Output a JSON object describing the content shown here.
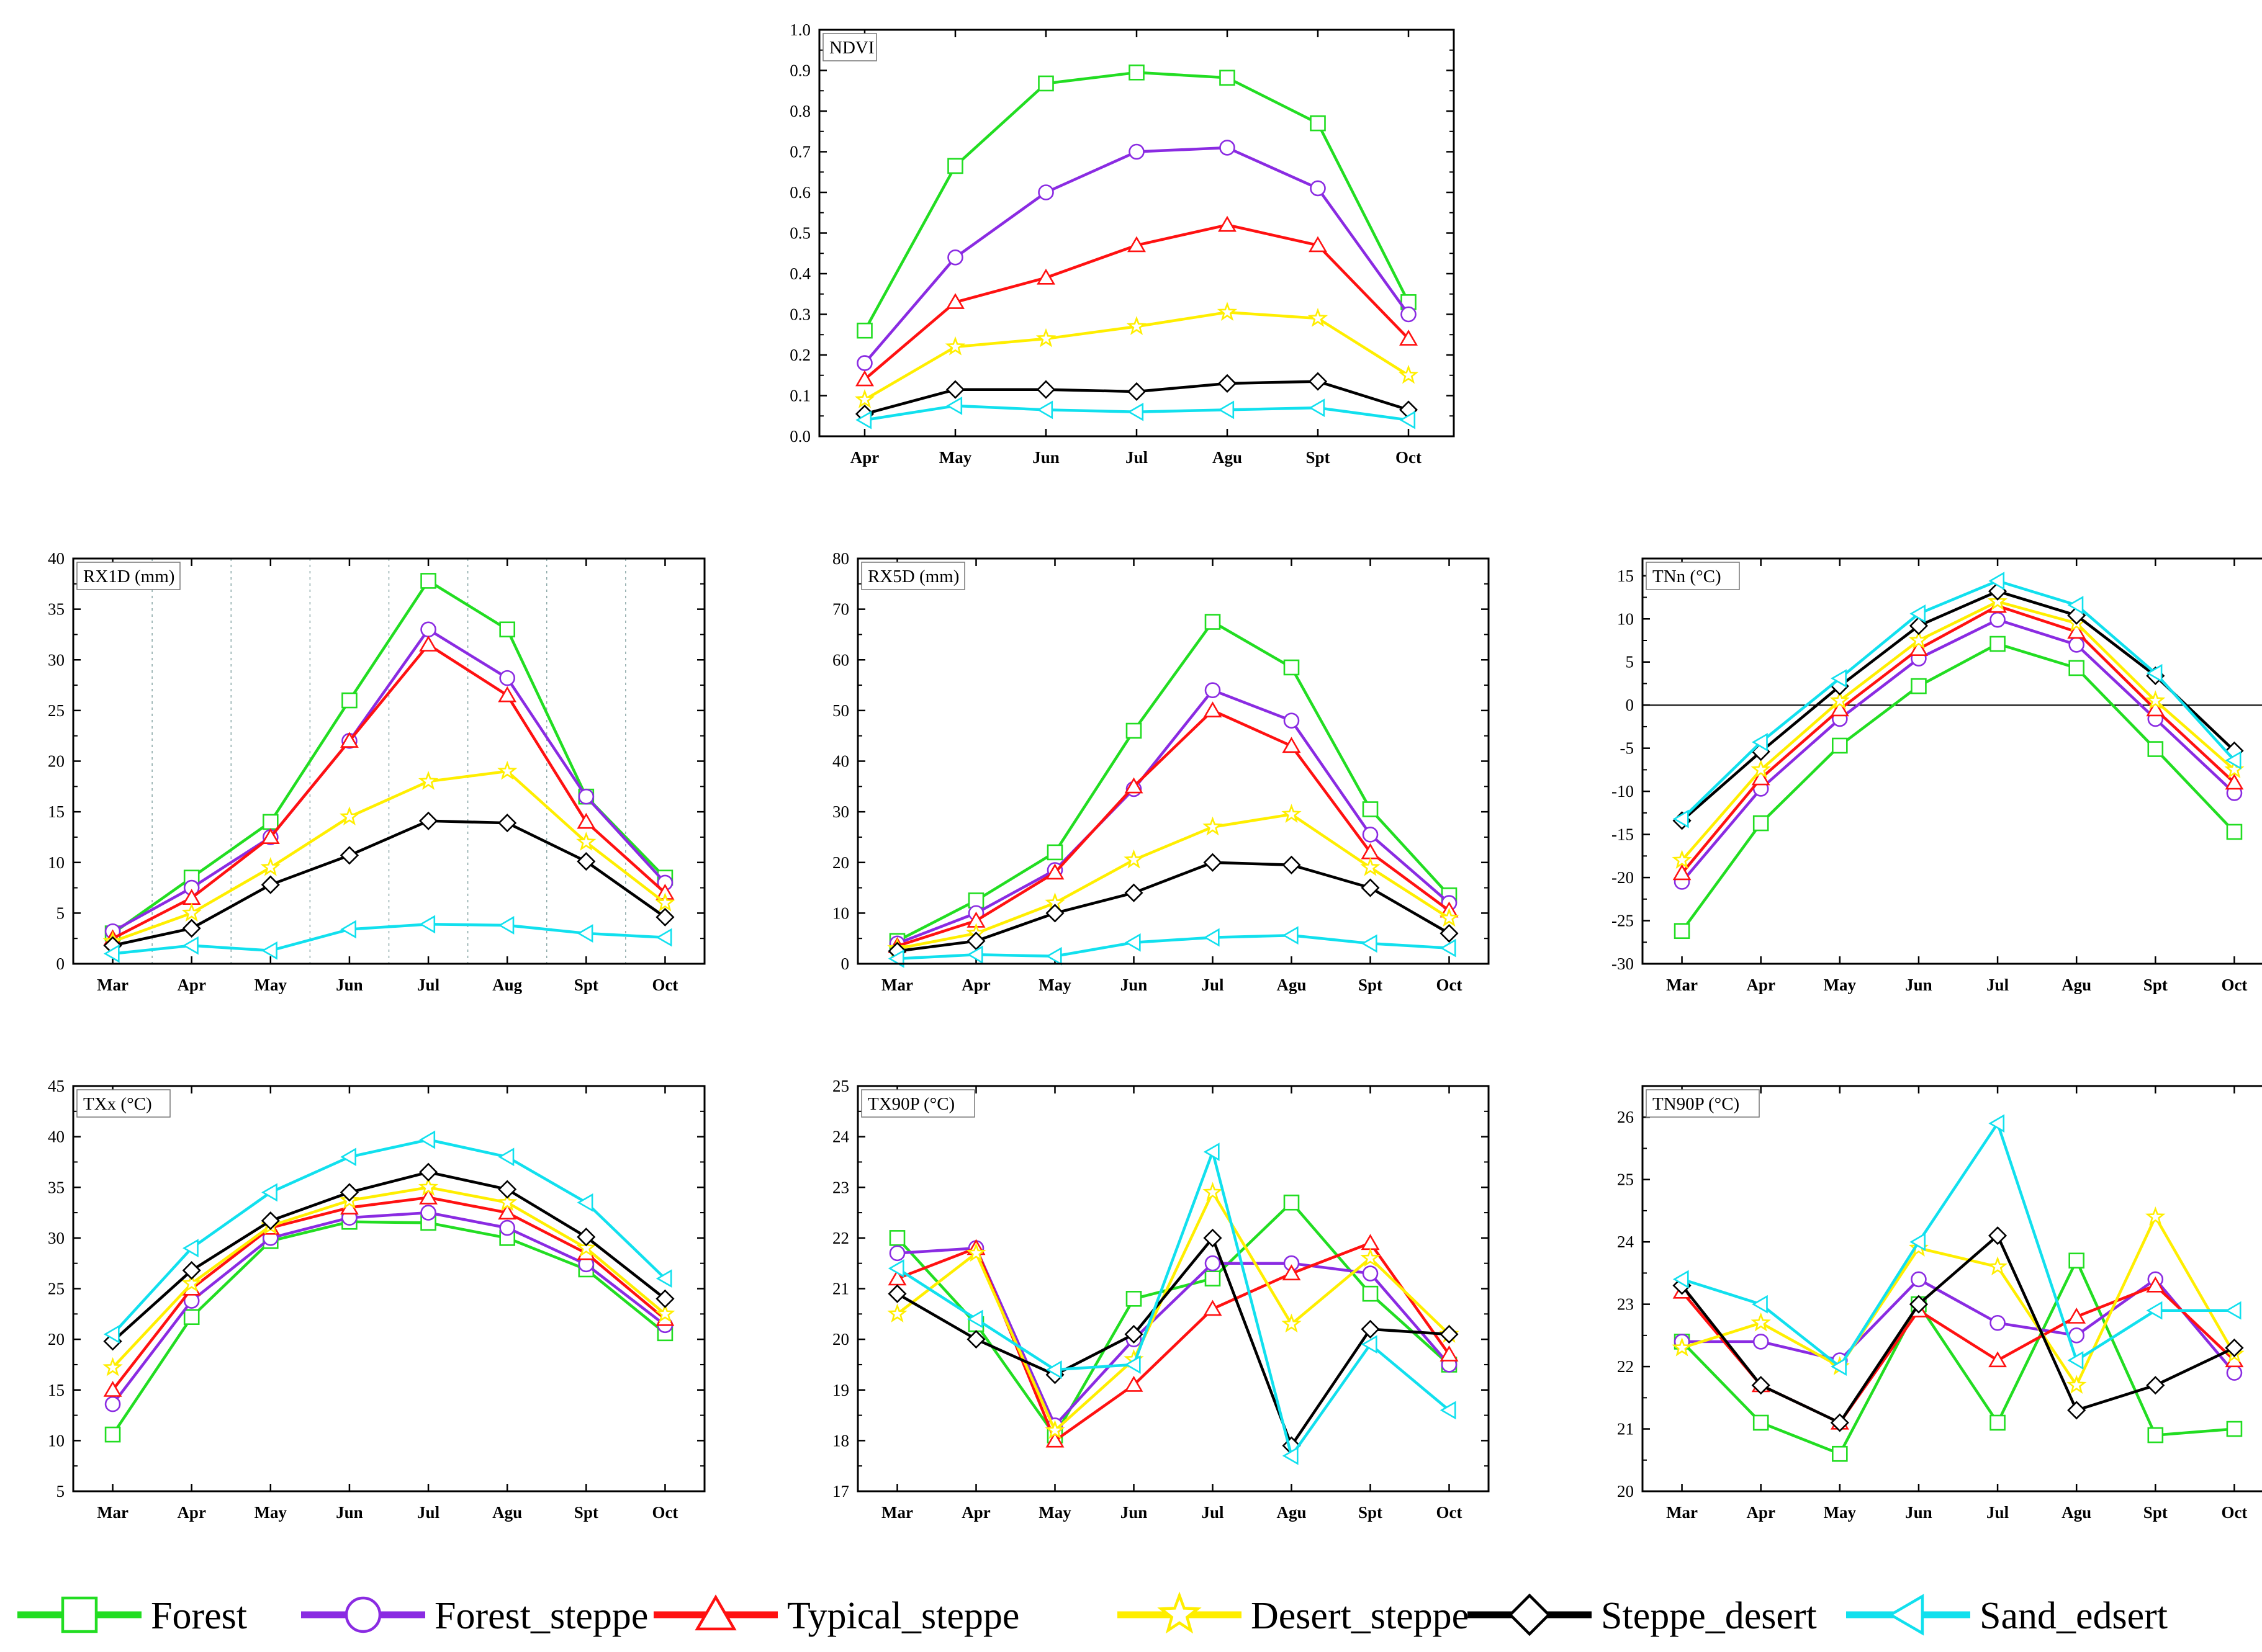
{
  "colors": {
    "Forest": "#22dd22",
    "Forest_steppe": "#8a2be2",
    "Typical_steppe": "#ff1111",
    "Desert_steppe": "#ffee00",
    "Steppe_desert": "#000000",
    "Sand_edsert": "#11e0ee"
  },
  "legend": {
    "placement": "bottom",
    "entries": [
      {
        "name": "Forest",
        "marker": "square"
      },
      {
        "name": "Forest_steppe",
        "marker": "circle"
      },
      {
        "name": "Typical_steppe",
        "marker": "triangle-up"
      },
      {
        "name": "Desert_steppe",
        "marker": "star"
      },
      {
        "name": "Steppe_desert",
        "marker": "diamond"
      },
      {
        "name": "Sand_edsert",
        "marker": "triangle-left"
      }
    ]
  },
  "chart_data": [
    {
      "type": "line",
      "title": "NDVI",
      "categories": [
        "Apr",
        "May",
        "Jun",
        "Jul",
        "Agu",
        "Spt",
        "Oct"
      ],
      "ylim": [
        0,
        1.0
      ],
      "yticks": [
        "0.0",
        "0.1",
        "0.2",
        "0.3",
        "0.4",
        "0.5",
        "0.6",
        "0.7",
        "0.8",
        "0.9",
        "1.0"
      ],
      "grid": false,
      "series": [
        {
          "name": "Forest",
          "values": [
            0.26,
            0.665,
            0.868,
            0.895,
            0.882,
            0.77,
            0.33
          ]
        },
        {
          "name": "Forest_steppe",
          "values": [
            0.18,
            0.44,
            0.6,
            0.7,
            0.71,
            0.61,
            0.3
          ]
        },
        {
          "name": "Typical_steppe",
          "values": [
            0.14,
            0.33,
            0.39,
            0.47,
            0.52,
            0.47,
            0.24
          ]
        },
        {
          "name": "Desert_steppe",
          "values": [
            0.09,
            0.22,
            0.24,
            0.27,
            0.305,
            0.29,
            0.15
          ]
        },
        {
          "name": "Steppe_desert",
          "values": [
            0.055,
            0.115,
            0.115,
            0.11,
            0.13,
            0.135,
            0.065
          ]
        },
        {
          "name": "Sand_edsert",
          "values": [
            0.04,
            0.075,
            0.065,
            0.06,
            0.065,
            0.07,
            0.04
          ]
        }
      ]
    },
    {
      "type": "line",
      "title": "RX1D (mm)",
      "categories": [
        "Mar",
        "Apr",
        "May",
        "Jun",
        "Jul",
        "Aug",
        "Spt",
        "Oct"
      ],
      "ylim": [
        0,
        40
      ],
      "yticks": [
        "0",
        "5",
        "10",
        "15",
        "20",
        "25",
        "30",
        "35",
        "40"
      ],
      "grid": true,
      "series": [
        {
          "name": "Forest",
          "values": [
            3.0,
            8.5,
            14.0,
            26.0,
            37.8,
            33.0,
            16.5,
            8.5
          ]
        },
        {
          "name": "Forest_steppe",
          "values": [
            3.2,
            7.5,
            12.5,
            22.0,
            33.0,
            28.2,
            16.5,
            8.0
          ]
        },
        {
          "name": "Typical_steppe",
          "values": [
            2.5,
            6.5,
            12.5,
            22.0,
            31.5,
            26.5,
            14.0,
            7.0
          ]
        },
        {
          "name": "Desert_steppe",
          "values": [
            2.2,
            5.0,
            9.5,
            14.5,
            18.0,
            19.0,
            12.0,
            6.0
          ]
        },
        {
          "name": "Steppe_desert",
          "values": [
            1.8,
            3.5,
            7.8,
            10.7,
            14.1,
            13.9,
            10.1,
            4.6
          ]
        },
        {
          "name": "Sand_edsert",
          "values": [
            1.0,
            1.8,
            1.3,
            3.4,
            3.9,
            3.8,
            3.0,
            2.6
          ]
        }
      ]
    },
    {
      "type": "line",
      "title": "RX5D (mm)",
      "categories": [
        "Mar",
        "Apr",
        "May",
        "Jun",
        "Jul",
        "Agu",
        "Spt",
        "Oct"
      ],
      "ylim": [
        0,
        80
      ],
      "yticks": [
        "0",
        "10",
        "20",
        "30",
        "40",
        "50",
        "60",
        "70",
        "80"
      ],
      "grid": false,
      "series": [
        {
          "name": "Forest",
          "values": [
            4.5,
            12.5,
            22.0,
            46.0,
            67.5,
            58.5,
            30.5,
            13.5
          ]
        },
        {
          "name": "Forest_steppe",
          "values": [
            4.0,
            10.0,
            18.5,
            34.5,
            54.0,
            48.0,
            25.5,
            12.0
          ]
        },
        {
          "name": "Typical_steppe",
          "values": [
            3.5,
            8.5,
            18.0,
            35.0,
            50.0,
            43.0,
            22.0,
            10.5
          ]
        },
        {
          "name": "Desert_steppe",
          "values": [
            3.0,
            6.0,
            12.0,
            20.5,
            27.0,
            29.5,
            19.0,
            9.0
          ]
        },
        {
          "name": "Steppe_desert",
          "values": [
            2.5,
            4.5,
            10.0,
            14.0,
            20.0,
            19.5,
            15.0,
            6.0
          ]
        },
        {
          "name": "Sand_edsert",
          "values": [
            1.0,
            1.8,
            1.5,
            4.2,
            5.2,
            5.6,
            4.0,
            3.1
          ]
        }
      ]
    },
    {
      "type": "line",
      "title": "TNn (°C)",
      "categories": [
        "Mar",
        "Apr",
        "May",
        "Jun",
        "Jul",
        "Agu",
        "Spt",
        "Oct"
      ],
      "ylim": [
        -30,
        17
      ],
      "yticks": [
        "-30",
        "-25",
        "-20",
        "-15",
        "-10",
        "-5",
        "0",
        "5",
        "10",
        "15"
      ],
      "zero_line": true,
      "grid": false,
      "series": [
        {
          "name": "Forest",
          "values": [
            -26.2,
            -13.7,
            -4.7,
            2.2,
            7.1,
            4.3,
            -5.1,
            -14.7
          ]
        },
        {
          "name": "Forest_steppe",
          "values": [
            -20.5,
            -9.7,
            -1.6,
            5.4,
            9.9,
            7.0,
            -1.6,
            -10.2
          ]
        },
        {
          "name": "Typical_steppe",
          "values": [
            -19.5,
            -8.5,
            -0.5,
            6.5,
            11.5,
            8.5,
            -0.5,
            -9.0
          ]
        },
        {
          "name": "Desert_steppe",
          "values": [
            -18.0,
            -7.5,
            0.5,
            7.5,
            12.0,
            9.5,
            0.5,
            -7.5
          ]
        },
        {
          "name": "Steppe_desert",
          "values": [
            -13.4,
            -5.4,
            2.2,
            9.2,
            13.2,
            10.4,
            3.4,
            -5.3
          ]
        },
        {
          "name": "Sand_edsert",
          "values": [
            -13.2,
            -4.3,
            3.1,
            10.6,
            14.4,
            11.6,
            3.7,
            -6.4
          ]
        }
      ]
    },
    {
      "type": "line",
      "title": "TXx (°C)",
      "categories": [
        "Mar",
        "Apr",
        "May",
        "Jun",
        "Jul",
        "Agu",
        "Spt",
        "Oct"
      ],
      "ylim": [
        5,
        45
      ],
      "yticks": [
        "5",
        "10",
        "15",
        "20",
        "25",
        "30",
        "35",
        "40",
        "45"
      ],
      "grid": false,
      "series": [
        {
          "name": "Forest",
          "values": [
            10.6,
            22.2,
            29.7,
            31.6,
            31.5,
            30.0,
            26.9,
            20.6
          ]
        },
        {
          "name": "Forest_steppe",
          "values": [
            13.6,
            23.8,
            30.0,
            32.0,
            32.5,
            31.0,
            27.4,
            21.4
          ]
        },
        {
          "name": "Typical_steppe",
          "values": [
            15.0,
            25.0,
            31.0,
            33.0,
            34.0,
            32.5,
            28.5,
            22.0
          ]
        },
        {
          "name": "Desert_steppe",
          "values": [
            17.2,
            25.5,
            31.2,
            33.7,
            35.0,
            33.5,
            29.0,
            22.5
          ]
        },
        {
          "name": "Steppe_desert",
          "values": [
            19.8,
            26.8,
            31.7,
            34.5,
            36.5,
            34.8,
            30.1,
            24.0
          ]
        },
        {
          "name": "Sand_edsert",
          "values": [
            20.5,
            29.0,
            34.5,
            38.0,
            39.7,
            38.0,
            33.5,
            26.0
          ]
        }
      ]
    },
    {
      "type": "line",
      "title": "TX90P (°C)",
      "categories": [
        "Mar",
        "Apr",
        "May",
        "Jun",
        "Jul",
        "Agu",
        "Spt",
        "Oct"
      ],
      "ylim": [
        17,
        25
      ],
      "yticks": [
        "17",
        "18",
        "19",
        "20",
        "21",
        "22",
        "23",
        "24",
        "25"
      ],
      "grid": false,
      "series": [
        {
          "name": "Forest",
          "values": [
            22.0,
            20.3,
            18.1,
            20.8,
            21.2,
            22.7,
            20.9,
            19.5
          ]
        },
        {
          "name": "Forest_steppe",
          "values": [
            21.7,
            21.8,
            18.3,
            20.0,
            21.5,
            21.5,
            21.3,
            19.5
          ]
        },
        {
          "name": "Typical_steppe",
          "values": [
            21.2,
            21.8,
            18.0,
            19.1,
            20.6,
            21.3,
            21.9,
            19.7
          ]
        },
        {
          "name": "Desert_steppe",
          "values": [
            20.5,
            21.7,
            18.2,
            19.6,
            22.9,
            20.3,
            21.6,
            20.1
          ]
        },
        {
          "name": "Steppe_desert",
          "values": [
            20.9,
            20.0,
            19.3,
            20.1,
            22.0,
            17.9,
            20.2,
            20.1
          ]
        },
        {
          "name": "Sand_edsert",
          "values": [
            21.4,
            20.4,
            19.4,
            19.5,
            23.7,
            17.7,
            19.9,
            18.6
          ]
        }
      ]
    },
    {
      "type": "line",
      "title": "TN90P (°C)",
      "categories": [
        "Mar",
        "Apr",
        "May",
        "Jun",
        "Jul",
        "Agu",
        "Spt",
        "Oct"
      ],
      "ylim": [
        20,
        26.5
      ],
      "yticks": [
        "20",
        "21",
        "22",
        "23",
        "24",
        "25",
        "26"
      ],
      "grid": false,
      "series": [
        {
          "name": "Forest",
          "values": [
            22.4,
            21.1,
            20.6,
            23.0,
            21.1,
            23.7,
            20.9,
            21.0
          ]
        },
        {
          "name": "Forest_steppe",
          "values": [
            22.4,
            22.4,
            22.1,
            23.4,
            22.7,
            22.5,
            23.4,
            21.9
          ]
        },
        {
          "name": "Typical_steppe",
          "values": [
            23.2,
            21.7,
            21.1,
            22.9,
            22.1,
            22.8,
            23.3,
            22.1
          ]
        },
        {
          "name": "Desert_steppe",
          "values": [
            22.3,
            22.7,
            22.0,
            23.9,
            23.6,
            21.7,
            24.4,
            22.2
          ]
        },
        {
          "name": "Steppe_desert",
          "values": [
            23.3,
            21.7,
            21.1,
            23.0,
            24.1,
            21.3,
            21.7,
            22.3
          ]
        },
        {
          "name": "Sand_edsert",
          "values": [
            23.4,
            23.0,
            22.0,
            24.0,
            25.9,
            22.1,
            22.9,
            22.9
          ]
        }
      ]
    }
  ]
}
